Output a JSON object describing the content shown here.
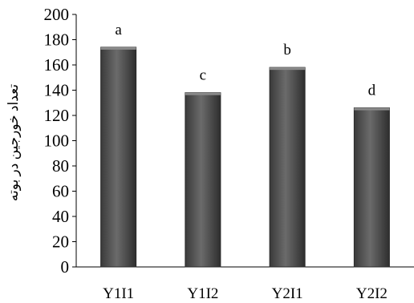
{
  "chart_data": {
    "type": "bar",
    "title": "",
    "xlabel": "",
    "ylabel": "تعداد خورجین در بوته",
    "categories": [
      "Y1I1",
      "Y1I2",
      "Y2I1",
      "Y2I2"
    ],
    "values": [
      174,
      138,
      158,
      126
    ],
    "data_labels": [
      "a",
      "c",
      "b",
      "d"
    ],
    "ylim": [
      0,
      200
    ],
    "yticks": [
      "0",
      "20",
      "40",
      "60",
      "80",
      "100",
      "120",
      "140",
      "160",
      "180",
      "200"
    ],
    "grid": false,
    "legend": "none",
    "bar_color": "#595959"
  }
}
